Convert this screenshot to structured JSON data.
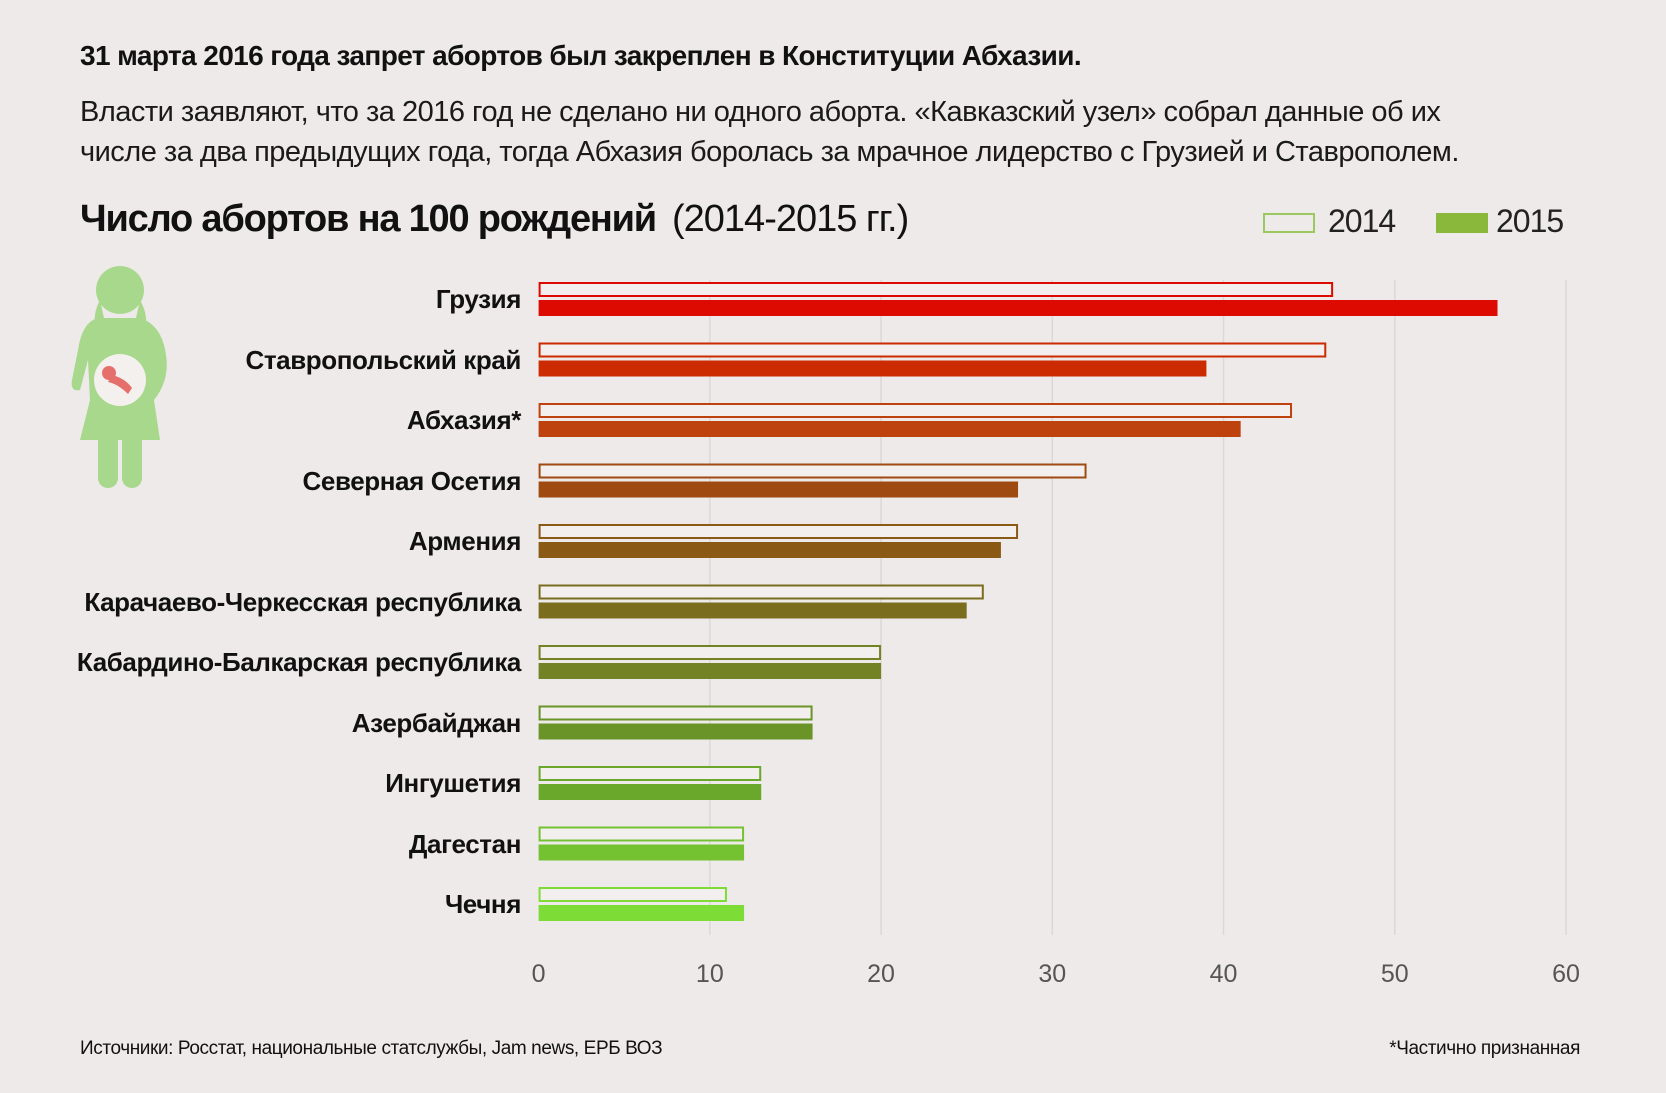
{
  "header": {
    "title": "31 марта 2016 года запрет абортов был закреплен в Конституции Абхазии.",
    "subtitle_line1": "Власти заявляют, что за 2016 год не сделано ни одного аборта. «Кавказский узел» собрал данные об их",
    "subtitle_line2": "числе за два предыдущих года, тогда Абхазия боролась за мрачное лидерство с Грузией и Ставрополем."
  },
  "footer": {
    "source": "Источники: Росстат, национальные статслужбы, Jam news, ЕРБ ВОЗ",
    "note": "*Частично признанная"
  },
  "icon": "pregnant-woman-icon",
  "chart_data": {
    "type": "bar",
    "orientation": "horizontal",
    "title": "Число абортов на 100 рождений",
    "title_suffix": "(2014-2015 гг.)",
    "legend_position": "top-right",
    "categories": [
      "Грузия",
      "Ставропольский край",
      "Абхазия*",
      "Северная Осетия",
      "Армения",
      "Карачаево-Черкесская республика",
      "Кабардино-Балкарская республика",
      "Азербайджан",
      "Ингушетия",
      "Дагестан",
      "Чечня"
    ],
    "series": [
      {
        "name": "2014",
        "style": "outline",
        "values": [
          46.4,
          46,
          44,
          32,
          28,
          26,
          20,
          16,
          13,
          12,
          11
        ]
      },
      {
        "name": "2015",
        "style": "filled",
        "values": [
          56,
          39,
          41,
          28,
          27,
          25,
          20,
          16,
          13,
          12,
          12
        ]
      }
    ],
    "row_colors": [
      "#dc0a00",
      "#cc2a00",
      "#bd420e",
      "#9e4a10",
      "#8a5a14",
      "#7a6e1e",
      "#738224",
      "#6a9428",
      "#6aa82c",
      "#74c232",
      "#7ddc36"
    ],
    "legend_colors": {
      "2014": "#9cc860",
      "2015": "#8ab83a"
    },
    "xlim": [
      0,
      60
    ],
    "xticks": [
      "0",
      "10",
      "20",
      "30",
      "40",
      "50",
      "60"
    ],
    "grid": true
  }
}
